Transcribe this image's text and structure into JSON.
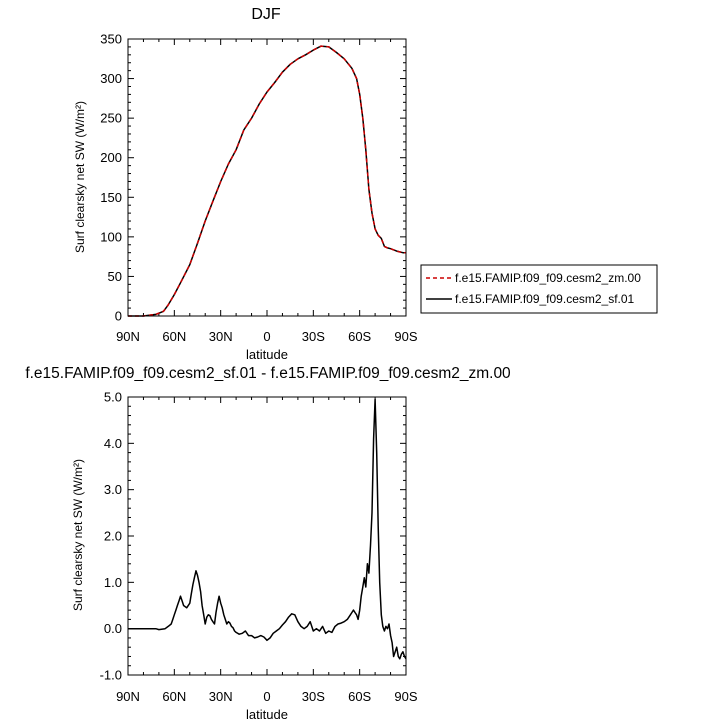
{
  "chart_data": [
    {
      "type": "line",
      "title": "DJF",
      "xlabel": "latitude",
      "ylabel": "Surf clearsky net SW (W/m²)",
      "xlim": [
        -90,
        90
      ],
      "ylim": [
        0,
        350
      ],
      "x_ticks": [
        {
          "value": -90,
          "label": "90N"
        },
        {
          "value": -60,
          "label": "60N"
        },
        {
          "value": -30,
          "label": "30N"
        },
        {
          "value": 0,
          "label": "0"
        },
        {
          "value": 30,
          "label": "30S"
        },
        {
          "value": 60,
          "label": "60S"
        },
        {
          "value": 90,
          "label": "90S"
        }
      ],
      "y_ticks": [
        0,
        50,
        100,
        150,
        200,
        250,
        300,
        350
      ],
      "legend_position": "right",
      "series": [
        {
          "name": "f.e15.FAMIP.f09_f09.cesm2_zm.00",
          "color": "#cc0000",
          "dash": "dashed",
          "x": [
            -90,
            -80,
            -72,
            -67,
            -64,
            -60,
            -56,
            -50,
            -45,
            -40,
            -35,
            -30,
            -25,
            -20,
            -15,
            -10,
            -5,
            0,
            5,
            10,
            15,
            20,
            25,
            30,
            35,
            40,
            45,
            50,
            55,
            58,
            60,
            62,
            64,
            66,
            68,
            70,
            72,
            74,
            76,
            78,
            80,
            84,
            88,
            90
          ],
          "y": [
            0,
            0,
            2,
            6,
            14,
            27,
            42,
            65,
            92,
            120,
            145,
            170,
            192,
            210,
            235,
            250,
            268,
            283,
            295,
            308,
            318,
            325,
            330,
            336,
            341,
            340,
            333,
            325,
            313,
            300,
            280,
            250,
            210,
            160,
            130,
            110,
            102,
            98,
            88,
            86,
            85,
            82,
            80,
            80
          ]
        },
        {
          "name": "f.e15.FAMIP.f09_f09.cesm2_sf.01",
          "color": "#000000",
          "dash": "solid",
          "x": [
            -90,
            -80,
            -72,
            -67,
            -64,
            -60,
            -56,
            -50,
            -45,
            -40,
            -35,
            -30,
            -25,
            -20,
            -15,
            -10,
            -5,
            0,
            5,
            10,
            15,
            20,
            25,
            30,
            35,
            40,
            45,
            50,
            55,
            58,
            60,
            62,
            64,
            66,
            68,
            70,
            72,
            74,
            76,
            78,
            80,
            84,
            88,
            90
          ],
          "y": [
            0,
            0,
            2,
            6,
            14,
            27,
            42,
            65,
            92,
            120,
            145,
            170,
            192,
            210,
            235,
            250,
            268,
            283,
            295,
            308,
            318,
            325,
            330,
            336,
            341,
            340,
            333,
            325,
            313,
            300,
            280,
            250,
            210,
            160,
            130,
            110,
            102,
            98,
            88,
            86,
            85,
            82,
            80,
            80
          ]
        }
      ]
    },
    {
      "type": "line",
      "title": "f.e15.FAMIP.f09_f09.cesm2_sf.01 - f.e15.FAMIP.f09_f09.cesm2_zm.00",
      "xlabel": "latitude",
      "ylabel": "Surf clearsky net SW (W/m²)",
      "xlim": [
        -90,
        90
      ],
      "ylim": [
        -1,
        5
      ],
      "x_ticks": [
        {
          "value": -90,
          "label": "90N"
        },
        {
          "value": -60,
          "label": "60N"
        },
        {
          "value": -30,
          "label": "30N"
        },
        {
          "value": 0,
          "label": "0"
        },
        {
          "value": 30,
          "label": "30S"
        },
        {
          "value": 60,
          "label": "60S"
        },
        {
          "value": 90,
          "label": "90S"
        }
      ],
      "y_ticks": [
        {
          "value": -1,
          "label": "-1.0"
        },
        {
          "value": 0,
          "label": "0.0"
        },
        {
          "value": 1,
          "label": "1.0"
        },
        {
          "value": 2,
          "label": "2.0"
        },
        {
          "value": 3,
          "label": "3.0"
        },
        {
          "value": 4,
          "label": "4.0"
        },
        {
          "value": 5,
          "label": "5.0"
        }
      ],
      "series": [
        {
          "color": "#000000",
          "dash": "solid",
          "x": [
            -90,
            -85,
            -80,
            -75,
            -72,
            -70,
            -66,
            -64,
            -62,
            -61,
            -60,
            -59,
            -58,
            -57,
            -56,
            -55,
            -54,
            -52,
            -50,
            -49,
            -48,
            -47,
            -46,
            -45,
            -44,
            -43,
            -42,
            -41,
            -40,
            -39,
            -38,
            -37,
            -36,
            -35,
            -34,
            -33,
            -32,
            -31,
            -30,
            -29,
            -28,
            -27,
            -26,
            -25,
            -24,
            -23,
            -22,
            -21,
            -20,
            -18,
            -16,
            -14,
            -12,
            -10,
            -8,
            -6,
            -4,
            -2,
            0,
            2,
            4,
            6,
            8,
            10,
            12,
            14,
            16,
            18,
            20,
            22,
            24,
            26,
            28,
            30,
            32,
            34,
            36,
            38,
            40,
            42,
            44,
            46,
            48,
            50,
            52,
            54,
            55,
            56,
            57,
            58,
            59,
            60,
            61,
            62,
            63,
            64,
            65,
            66,
            67,
            68,
            69,
            70,
            71,
            72,
            73,
            74,
            75,
            76,
            77,
            78,
            79,
            80,
            81,
            82,
            83,
            84,
            85,
            86,
            87,
            88,
            89,
            90
          ],
          "y": [
            0,
            0,
            0,
            0,
            0,
            -0.02,
            0,
            0.05,
            0.1,
            0.2,
            0.3,
            0.4,
            0.5,
            0.6,
            0.7,
            0.6,
            0.5,
            0.45,
            0.55,
            0.75,
            0.95,
            1.1,
            1.25,
            1.15,
            1.0,
            0.8,
            0.5,
            0.3,
            0.1,
            0.25,
            0.3,
            0.28,
            0.2,
            0.15,
            0.1,
            0.35,
            0.55,
            0.7,
            0.55,
            0.45,
            0.3,
            0.2,
            0.1,
            0.15,
            0.12,
            0.05,
            0.02,
            -0.05,
            -0.08,
            -0.12,
            -0.1,
            -0.05,
            -0.15,
            -0.15,
            -0.2,
            -0.18,
            -0.15,
            -0.18,
            -0.25,
            -0.2,
            -0.1,
            -0.05,
            0.0,
            0.08,
            0.15,
            0.25,
            0.32,
            0.3,
            0.15,
            0.05,
            0.0,
            0.05,
            0.15,
            -0.05,
            0.0,
            -0.05,
            0.05,
            -0.1,
            -0.05,
            -0.08,
            0.05,
            0.1,
            0.12,
            0.15,
            0.2,
            0.3,
            0.35,
            0.4,
            0.35,
            0.3,
            0.2,
            0.4,
            0.7,
            0.9,
            1.1,
            0.9,
            1.4,
            1.2,
            1.8,
            2.5,
            4.1,
            4.95,
            3.8,
            2.2,
            1.0,
            0.3,
            0.05,
            -0.05,
            0.05,
            0.0,
            0.1,
            -0.15,
            -0.3,
            -0.6,
            -0.5,
            -0.4,
            -0.6,
            -0.65,
            -0.55,
            -0.5,
            -0.6,
            -0.65
          ]
        }
      ]
    }
  ]
}
